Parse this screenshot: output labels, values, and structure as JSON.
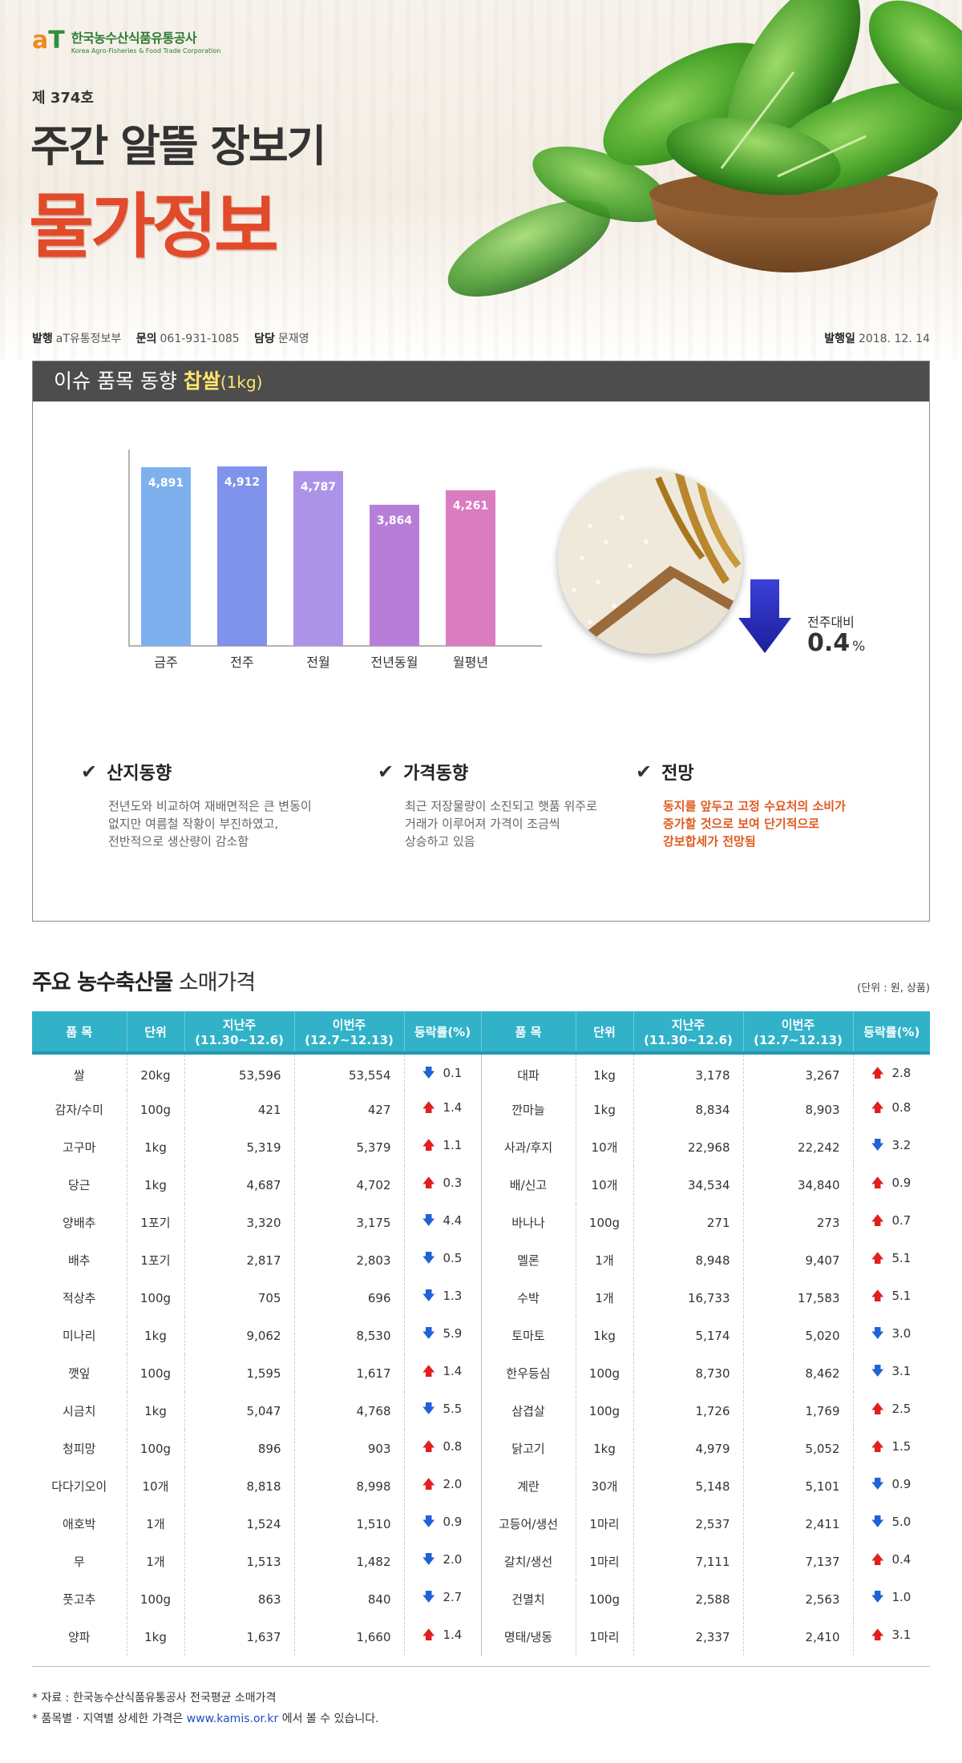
{
  "header": {
    "logo_mark_a": "a",
    "logo_mark_t": "T",
    "logo_name_ko": "한국농수산식품유통공사",
    "logo_name_en": "Korea Agro-Fisheries & Food Trade Corporation",
    "issue_number": "제 374호",
    "title_line1": "주간 알뜰 장보기",
    "title_line2": "물가정보",
    "publisher_label": "발행",
    "publisher": "aT유통정보부",
    "contact_label": "문의",
    "contact": "061-931-1085",
    "manager_label": "담당",
    "manager": "문재영",
    "date_label": "발행일",
    "date": "2018. 12. 14"
  },
  "issue": {
    "heading_prefix": "이슈 품목 동향",
    "item": "찹쌀",
    "item_unit": "(1kg)",
    "wow_label": "전주대비",
    "wow_value": "0.4",
    "wow_unit": "%",
    "columns": [
      {
        "title": "산지동향",
        "lines": [
          "전년도와 비교하여 재배면적은 큰 변동이",
          "없지만 여름철 작황이 부진하였고,",
          "전반적으로 생산량이 감소함"
        ]
      },
      {
        "title": "가격동향",
        "lines": [
          "최근 저장물량이 소진되고 햇품 위주로",
          "거래가 이루어져 가격이 조금씩",
          "상승하고 있음"
        ]
      },
      {
        "title": "전망",
        "lines": [
          "동지를 앞두고 고정 수요처의 소비가",
          "증가할 것으로 보여 단기적으로",
          "강보합세가 전망됨"
        ]
      }
    ]
  },
  "chart_data": {
    "type": "bar",
    "categories": [
      "금주",
      "전주",
      "전월",
      "전년동월",
      "월평년"
    ],
    "values": [
      4891,
      4912,
      4787,
      3864,
      4261
    ],
    "value_labels": [
      "4,891",
      "4,912",
      "4,787",
      "3,864",
      "4,261"
    ],
    "colors": [
      "#7fb0ee",
      "#7f92ec",
      "#ad93e8",
      "#b77ed8",
      "#dc7cc0"
    ],
    "title": "",
    "xlabel": "",
    "ylabel": "",
    "grid": false
  },
  "prices": {
    "title_bold": "주요 농수축산물",
    "title_rest": "소매가격",
    "unit_note": "(단위 : 원, 상품)",
    "columns": [
      "품 목",
      "단위",
      "지난주(11.30~12.6)",
      "이번주(12.7~12.13)",
      "등락률(%)",
      "품 목",
      "단위",
      "지난주(11.30~12.6)",
      "이번주(12.7~12.13)",
      "등락률(%)"
    ],
    "rows": [
      {
        "left": {
          "name": "쌀",
          "unit": "20kg",
          "last": "53,596",
          "this": "53,554",
          "dir": "down",
          "rate": "0.1"
        },
        "right": {
          "name": "대파",
          "unit": "1kg",
          "last": "3,178",
          "this": "3,267",
          "dir": "up",
          "rate": "2.8"
        }
      },
      {
        "left": {
          "name": "감자/수미",
          "unit": "100g",
          "last": "421",
          "this": "427",
          "dir": "up",
          "rate": "1.4"
        },
        "right": {
          "name": "깐마늘",
          "unit": "1kg",
          "last": "8,834",
          "this": "8,903",
          "dir": "up",
          "rate": "0.8"
        }
      },
      {
        "left": {
          "name": "고구마",
          "unit": "1kg",
          "last": "5,319",
          "this": "5,379",
          "dir": "up",
          "rate": "1.1"
        },
        "right": {
          "name": "사과/후지",
          "unit": "10개",
          "last": "22,968",
          "this": "22,242",
          "dir": "down",
          "rate": "3.2"
        }
      },
      {
        "left": {
          "name": "당근",
          "unit": "1kg",
          "last": "4,687",
          "this": "4,702",
          "dir": "up",
          "rate": "0.3"
        },
        "right": {
          "name": "배/신고",
          "unit": "10개",
          "last": "34,534",
          "this": "34,840",
          "dir": "up",
          "rate": "0.9"
        }
      },
      {
        "left": {
          "name": "양배추",
          "unit": "1포기",
          "last": "3,320",
          "this": "3,175",
          "dir": "down",
          "rate": "4.4"
        },
        "right": {
          "name": "바나나",
          "unit": "100g",
          "last": "271",
          "this": "273",
          "dir": "up",
          "rate": "0.7"
        }
      },
      {
        "left": {
          "name": "배추",
          "unit": "1포기",
          "last": "2,817",
          "this": "2,803",
          "dir": "down",
          "rate": "0.5"
        },
        "right": {
          "name": "멜론",
          "unit": "1개",
          "last": "8,948",
          "this": "9,407",
          "dir": "up",
          "rate": "5.1"
        }
      },
      {
        "left": {
          "name": "적상추",
          "unit": "100g",
          "last": "705",
          "this": "696",
          "dir": "down",
          "rate": "1.3"
        },
        "right": {
          "name": "수박",
          "unit": "1개",
          "last": "16,733",
          "this": "17,583",
          "dir": "up",
          "rate": "5.1"
        }
      },
      {
        "left": {
          "name": "미나리",
          "unit": "1kg",
          "last": "9,062",
          "this": "8,530",
          "dir": "down",
          "rate": "5.9"
        },
        "right": {
          "name": "토마토",
          "unit": "1kg",
          "last": "5,174",
          "this": "5,020",
          "dir": "down",
          "rate": "3.0"
        }
      },
      {
        "left": {
          "name": "깻잎",
          "unit": "100g",
          "last": "1,595",
          "this": "1,617",
          "dir": "up",
          "rate": "1.4"
        },
        "right": {
          "name": "한우등심",
          "unit": "100g",
          "last": "8,730",
          "this": "8,462",
          "dir": "down",
          "rate": "3.1"
        }
      },
      {
        "left": {
          "name": "시금치",
          "unit": "1kg",
          "last": "5,047",
          "this": "4,768",
          "dir": "down",
          "rate": "5.5"
        },
        "right": {
          "name": "삼겹살",
          "unit": "100g",
          "last": "1,726",
          "this": "1,769",
          "dir": "up",
          "rate": "2.5"
        }
      },
      {
        "left": {
          "name": "청피망",
          "unit": "100g",
          "last": "896",
          "this": "903",
          "dir": "up",
          "rate": "0.8"
        },
        "right": {
          "name": "닭고기",
          "unit": "1kg",
          "last": "4,979",
          "this": "5,052",
          "dir": "up",
          "rate": "1.5"
        }
      },
      {
        "left": {
          "name": "다다기오이",
          "unit": "10개",
          "last": "8,818",
          "this": "8,998",
          "dir": "up",
          "rate": "2.0"
        },
        "right": {
          "name": "계란",
          "unit": "30개",
          "last": "5,148",
          "this": "5,101",
          "dir": "down",
          "rate": "0.9"
        }
      },
      {
        "left": {
          "name": "애호박",
          "unit": "1개",
          "last": "1,524",
          "this": "1,510",
          "dir": "down",
          "rate": "0.9"
        },
        "right": {
          "name": "고등어/생선",
          "unit": "1마리",
          "last": "2,537",
          "this": "2,411",
          "dir": "down",
          "rate": "5.0"
        }
      },
      {
        "left": {
          "name": "무",
          "unit": "1개",
          "last": "1,513",
          "this": "1,482",
          "dir": "down",
          "rate": "2.0"
        },
        "right": {
          "name": "갈치/생선",
          "unit": "1마리",
          "last": "7,111",
          "this": "7,137",
          "dir": "up",
          "rate": "0.4"
        }
      },
      {
        "left": {
          "name": "풋고추",
          "unit": "100g",
          "last": "863",
          "this": "840",
          "dir": "down",
          "rate": "2.7"
        },
        "right": {
          "name": "건멸치",
          "unit": "100g",
          "last": "2,588",
          "this": "2,563",
          "dir": "down",
          "rate": "1.0"
        }
      },
      {
        "left": {
          "name": "양파",
          "unit": "1kg",
          "last": "1,637",
          "this": "1,660",
          "dir": "up",
          "rate": "1.4"
        },
        "right": {
          "name": "명태/냉동",
          "unit": "1마리",
          "last": "2,337",
          "this": "2,410",
          "dir": "up",
          "rate": "3.1"
        }
      }
    ]
  },
  "footer": {
    "source": "* 자료 : 한국농수산식품유통공사 전국평균 소매가격",
    "detail_prefix": "* 품목별 · 지역별 상세한 가격은",
    "link": "www.kamis.or.kr",
    "detail_suffix": "에서 볼 수 있습니다."
  }
}
